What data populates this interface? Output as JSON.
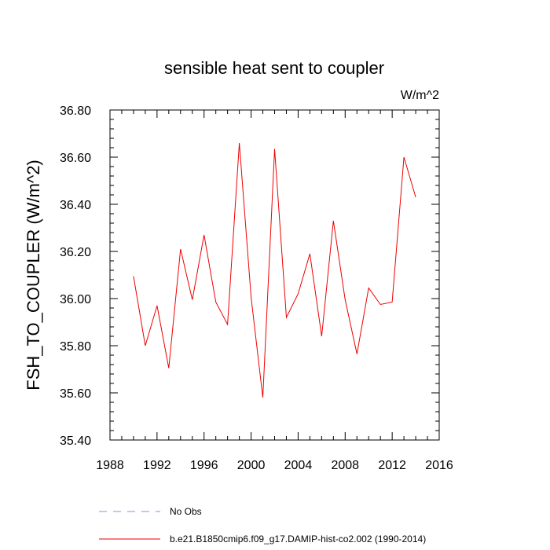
{
  "chart_data": {
    "type": "line",
    "title": "sensible heat sent to coupler",
    "units": "W/m^2",
    "ylabel": "FSH_TO_COUPLER  (W/m^2)",
    "xlabel": "",
    "xlim": [
      1988,
      2016
    ],
    "ylim": [
      35.4,
      36.8
    ],
    "x_ticks": [
      1988,
      1992,
      1996,
      2000,
      2004,
      2008,
      2012,
      2016
    ],
    "x_tick_labels": [
      "1988",
      "1992",
      "1996",
      "2000",
      "2004",
      "2008",
      "2012",
      "2016"
    ],
    "y_ticks": [
      35.4,
      35.6,
      35.8,
      36.0,
      36.2,
      36.4,
      36.6,
      36.8
    ],
    "y_tick_labels": [
      "35.40",
      "35.60",
      "35.80",
      "36.00",
      "36.20",
      "36.40",
      "36.60",
      "36.80"
    ],
    "grid": false,
    "legend_position": "bottom",
    "series": [
      {
        "name": "b.e21.B1850cmip6.f09_g17.DAMIP-hist-co2.002 (1990-2014)",
        "color": "#ee0000",
        "style": "solid",
        "x": [
          1990,
          1991,
          1992,
          1993,
          1994,
          1995,
          1996,
          1997,
          1998,
          1999,
          2000,
          2001,
          2002,
          2003,
          2004,
          2005,
          2006,
          2007,
          2008,
          2009,
          2010,
          2011,
          2012,
          2013,
          2014
        ],
        "y": [
          36.095,
          35.8,
          35.97,
          35.705,
          36.21,
          35.995,
          36.27,
          35.985,
          35.89,
          36.66,
          36.005,
          35.58,
          36.635,
          35.92,
          36.02,
          36.19,
          35.84,
          36.33,
          35.995,
          35.765,
          36.045,
          35.975,
          35.985,
          36.6,
          36.43
        ]
      },
      {
        "name": "No Obs",
        "color": "#8888ee",
        "style": "dashed",
        "x": [],
        "y": []
      }
    ]
  }
}
